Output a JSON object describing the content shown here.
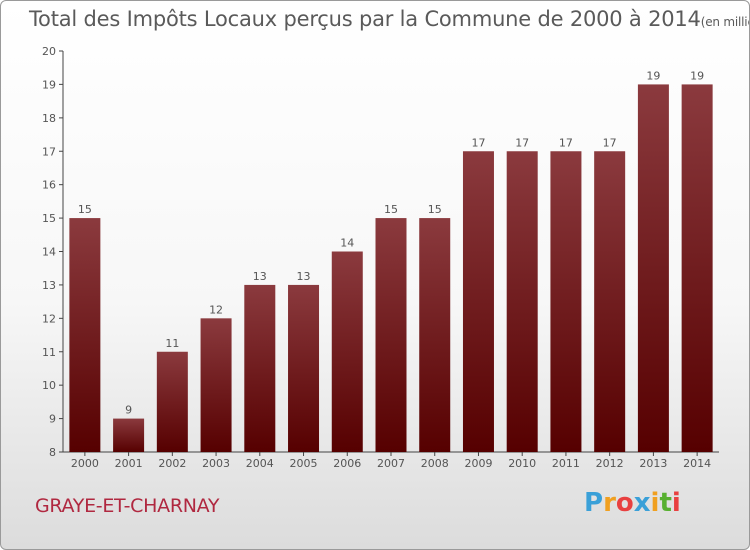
{
  "chart_data": {
    "type": "bar",
    "title": "Total des Impôts Locaux perçus par la Commune de 2000 à 2014",
    "subtitle": "(en milliers d'€)",
    "categories": [
      "2000",
      "2001",
      "2002",
      "2003",
      "2004",
      "2005",
      "2006",
      "2007",
      "2008",
      "2009",
      "2010",
      "2011",
      "2012",
      "2013",
      "2014"
    ],
    "values": [
      15,
      9,
      11,
      12,
      13,
      13,
      14,
      15,
      15,
      17,
      17,
      17,
      17,
      19,
      19
    ],
    "ylim": [
      8,
      20
    ],
    "yticks": [
      8,
      9,
      10,
      11,
      12,
      13,
      14,
      15,
      16,
      17,
      18,
      19,
      20
    ],
    "xlabel": "",
    "ylabel": "",
    "grid": false,
    "bar_color_top": "#8b3a3e",
    "bar_color_bottom": "#560000"
  },
  "commune_name": "GRAYE-ET-CHARNAY",
  "logo": {
    "letters": [
      "P",
      "r",
      "o",
      "x",
      "i",
      "t",
      "i"
    ],
    "colors": [
      "#3aa0d8",
      "#f0a020",
      "#e84040",
      "#3aa0d8",
      "#f0a020",
      "#58b030",
      "#e84040"
    ]
  }
}
